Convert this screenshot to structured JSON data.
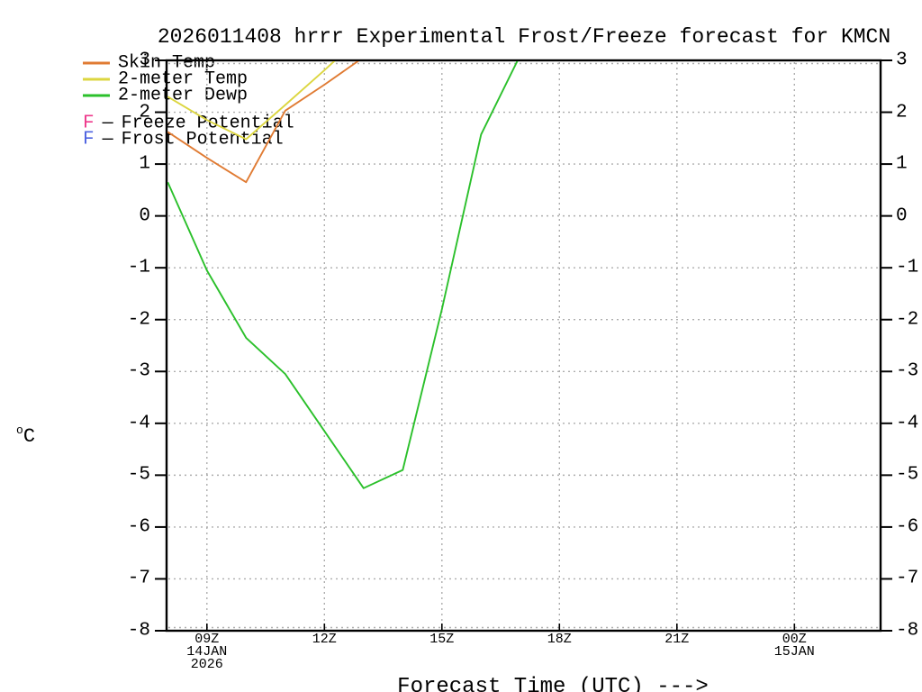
{
  "title": "2026011408 hrrr Experimental Frost/Freeze forecast for KMCN",
  "x_label": "Forecast Time (UTC) --->",
  "y_axis": {
    "unit_sup": "o",
    "unit_main": "C"
  },
  "legend": {
    "series": [
      {
        "label": "Skin Temp",
        "color": "#E07B33"
      },
      {
        "label": "2-meter Temp",
        "color": "#DCD640"
      },
      {
        "label": "2-meter Dewp",
        "color": "#2BC02B"
      }
    ],
    "flags": [
      {
        "letter": "F",
        "dash": "—",
        "label": "Freeze Potential",
        "color": "#EE3A8C"
      },
      {
        "letter": "F",
        "dash": "—",
        "label": "Frost Potential",
        "color": "#4E63E0"
      }
    ]
  },
  "chart_data": {
    "type": "line",
    "title": "2026011408 hrrr Experimental Frost/Freeze forecast for KMCN",
    "xlabel": "Forecast Time (UTC) --->",
    "ylabel": "°C",
    "x_unit": "hours UTC starting 08Z 14 Jan 2026",
    "xlim": [
      7.97,
      26.2
    ],
    "ylim": [
      -8,
      3
    ],
    "grid": true,
    "legend_position": "top-left",
    "x_ticks": [
      {
        "hour": 9,
        "label": "09Z",
        "sub1": "14JAN",
        "sub2": "2026"
      },
      {
        "hour": 12,
        "label": "12Z"
      },
      {
        "hour": 15,
        "label": "15Z"
      },
      {
        "hour": 18,
        "label": "18Z"
      },
      {
        "hour": 21,
        "label": "21Z"
      },
      {
        "hour": 24,
        "label": "00Z",
        "sub1": "15JAN"
      }
    ],
    "y_ticks": [
      3,
      2,
      1,
      0,
      -1,
      -2,
      -3,
      -4,
      -5,
      -6,
      -7,
      -8
    ],
    "series": [
      {
        "name": "Skin Temp",
        "color": "#E07B33",
        "points": [
          [
            8,
            1.62
          ],
          [
            9,
            1.12
          ],
          [
            10,
            0.65
          ],
          [
            11,
            2.03
          ],
          [
            12,
            2.53
          ],
          [
            13,
            3.06
          ]
        ]
      },
      {
        "name": "2-meter Temp",
        "color": "#DCD640",
        "points": [
          [
            8,
            2.3
          ],
          [
            9,
            1.85
          ],
          [
            10,
            1.48
          ],
          [
            11,
            2.14
          ],
          [
            12,
            2.81
          ],
          [
            13,
            3.5
          ]
        ]
      },
      {
        "name": "2-meter Dewp",
        "color": "#2BC02B",
        "points": [
          [
            8,
            0.65
          ],
          [
            9,
            -1.05
          ],
          [
            10,
            -2.35
          ],
          [
            11,
            -3.05
          ],
          [
            12,
            -4.15
          ],
          [
            13,
            -5.25
          ],
          [
            14,
            -4.9
          ],
          [
            15,
            -1.8
          ],
          [
            16,
            1.57
          ],
          [
            17,
            3.1
          ]
        ]
      }
    ]
  }
}
